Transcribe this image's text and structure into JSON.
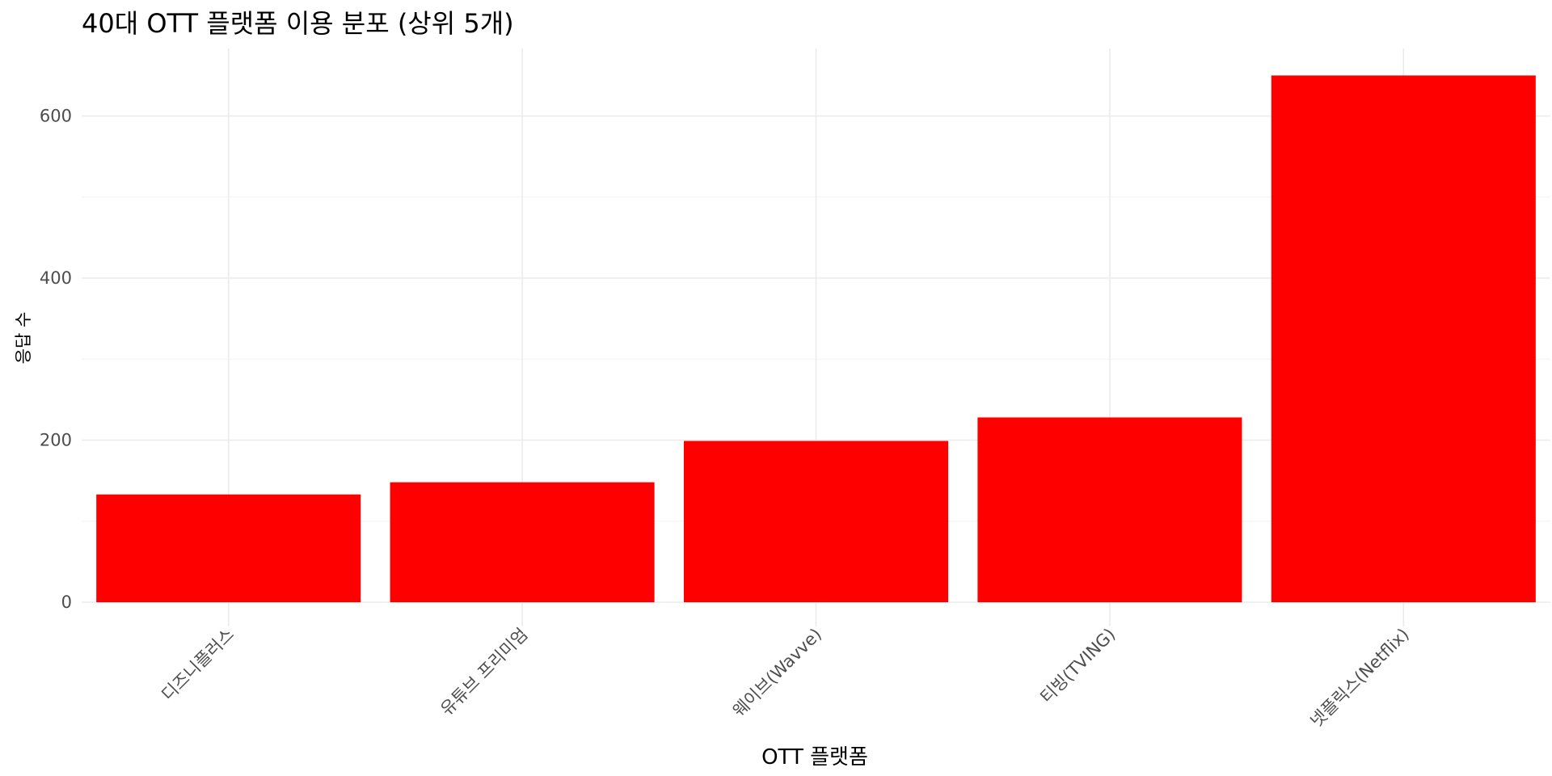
{
  "chart_data": {
    "type": "bar",
    "title": "40대 OTT 플랫폼 이용 분포 (상위 5개)",
    "xlabel": "OTT 플랫폼",
    "ylabel": "응답 수",
    "categories": [
      "디즈니플러스",
      "유튜브 프리미엄",
      "웨이브(Wavve)",
      "티빙(TVING)",
      "넷플릭스(Netflix)"
    ],
    "values": [
      133,
      148,
      199,
      228,
      650
    ],
    "ylim": [
      0,
      680
    ],
    "yticks": [
      0,
      200,
      400,
      600
    ],
    "yticks_minor": [
      100,
      300,
      500
    ],
    "bar_color": "#ff0000",
    "grid": true,
    "legend": "none"
  }
}
